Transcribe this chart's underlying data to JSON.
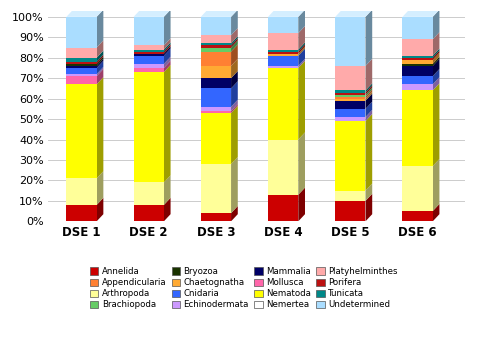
{
  "categories": [
    "DSE 1",
    "DSE 2",
    "DSE 3",
    "DSE 4",
    "DSE 5",
    "DSE 6"
  ],
  "series_order": [
    "Annelida",
    "Arthropoda",
    "Nematoda",
    "Mollusca",
    "Echinodermata",
    "Cnidaria",
    "Mammalia",
    "Bryozoa",
    "Chaetognatha",
    "Appendicularia",
    "Brachiopoda",
    "Porifera",
    "Tunicata",
    "Platyhelminthes",
    "Undetermined",
    "Nemertea"
  ],
  "series": {
    "Annelida": [
      8,
      8,
      4,
      13,
      10,
      5
    ],
    "Appendicularia": [
      0,
      0,
      7,
      0,
      1,
      0
    ],
    "Arthropoda": [
      13,
      11,
      24,
      27,
      5,
      22
    ],
    "Brachiopoda": [
      0,
      0,
      2,
      0,
      1,
      0
    ],
    "Bryozoa": [
      1,
      0,
      0,
      0,
      0,
      1
    ],
    "Chaetognatha": [
      0,
      0,
      6,
      1,
      1,
      2
    ],
    "Cnidaria": [
      3,
      4,
      9,
      5,
      4,
      4
    ],
    "Echinodermata": [
      1,
      2,
      2,
      1,
      2,
      3
    ],
    "Mammalia": [
      1,
      1,
      5,
      0,
      4,
      5
    ],
    "Mollusca": [
      4,
      2,
      1,
      0,
      0,
      0
    ],
    "Nematoda": [
      46,
      54,
      25,
      35,
      34,
      37
    ],
    "Nemertea": [
      0,
      0,
      0,
      0,
      0,
      0
    ],
    "Platyhelminthes": [
      5,
      2,
      4,
      8,
      12,
      8
    ],
    "Porifera": [
      1,
      1,
      1,
      1,
      1,
      1
    ],
    "Tunicata": [
      2,
      1,
      1,
      1,
      1,
      1
    ],
    "Undetermined": [
      15,
      14,
      9,
      8,
      24,
      11
    ]
  },
  "colors": {
    "Annelida": "#cc0000",
    "Appendicularia": "#ff8033",
    "Arthropoda": "#ffff99",
    "Brachiopoda": "#66cc66",
    "Bryozoa": "#1a3300",
    "Chaetognatha": "#ffaa33",
    "Cnidaria": "#3366ff",
    "Echinodermata": "#cc99ff",
    "Mammalia": "#000066",
    "Mollusca": "#ff66aa",
    "Nematoda": "#ffff00",
    "Nemertea": "#ffffff",
    "Platyhelminthes": "#ffaaaa",
    "Porifera": "#bb1111",
    "Tunicata": "#008888",
    "Undetermined": "#aaddff"
  },
  "legend_order": [
    "Annelida",
    "Appendicularia",
    "Arthropoda",
    "Brachiopoda",
    "Bryozoa",
    "Chaetognatha",
    "Cnidaria",
    "Echinodermata",
    "Mammalia",
    "Mollusca",
    "Nematoda",
    "Nemertea",
    "Platyhelminthes",
    "Porifera",
    "Tunicata",
    "Undetermined"
  ],
  "stack_order": [
    "Annelida",
    "Arthropoda",
    "Nematoda",
    "Mollusca",
    "Echinodermata",
    "Cnidaria",
    "Mammalia",
    "Bryozoa",
    "Chaetognatha",
    "Appendicularia",
    "Brachiopoda",
    "Porifera",
    "Tunicata",
    "Platyhelminthes",
    "Undetermined",
    "Nemertea"
  ],
  "yticks": [
    0,
    10,
    20,
    30,
    40,
    50,
    60,
    70,
    80,
    90,
    100
  ],
  "figsize": [
    4.79,
    3.57
  ],
  "dpi": 100,
  "side_color": "#a09070",
  "bg_color": "#ffffff"
}
